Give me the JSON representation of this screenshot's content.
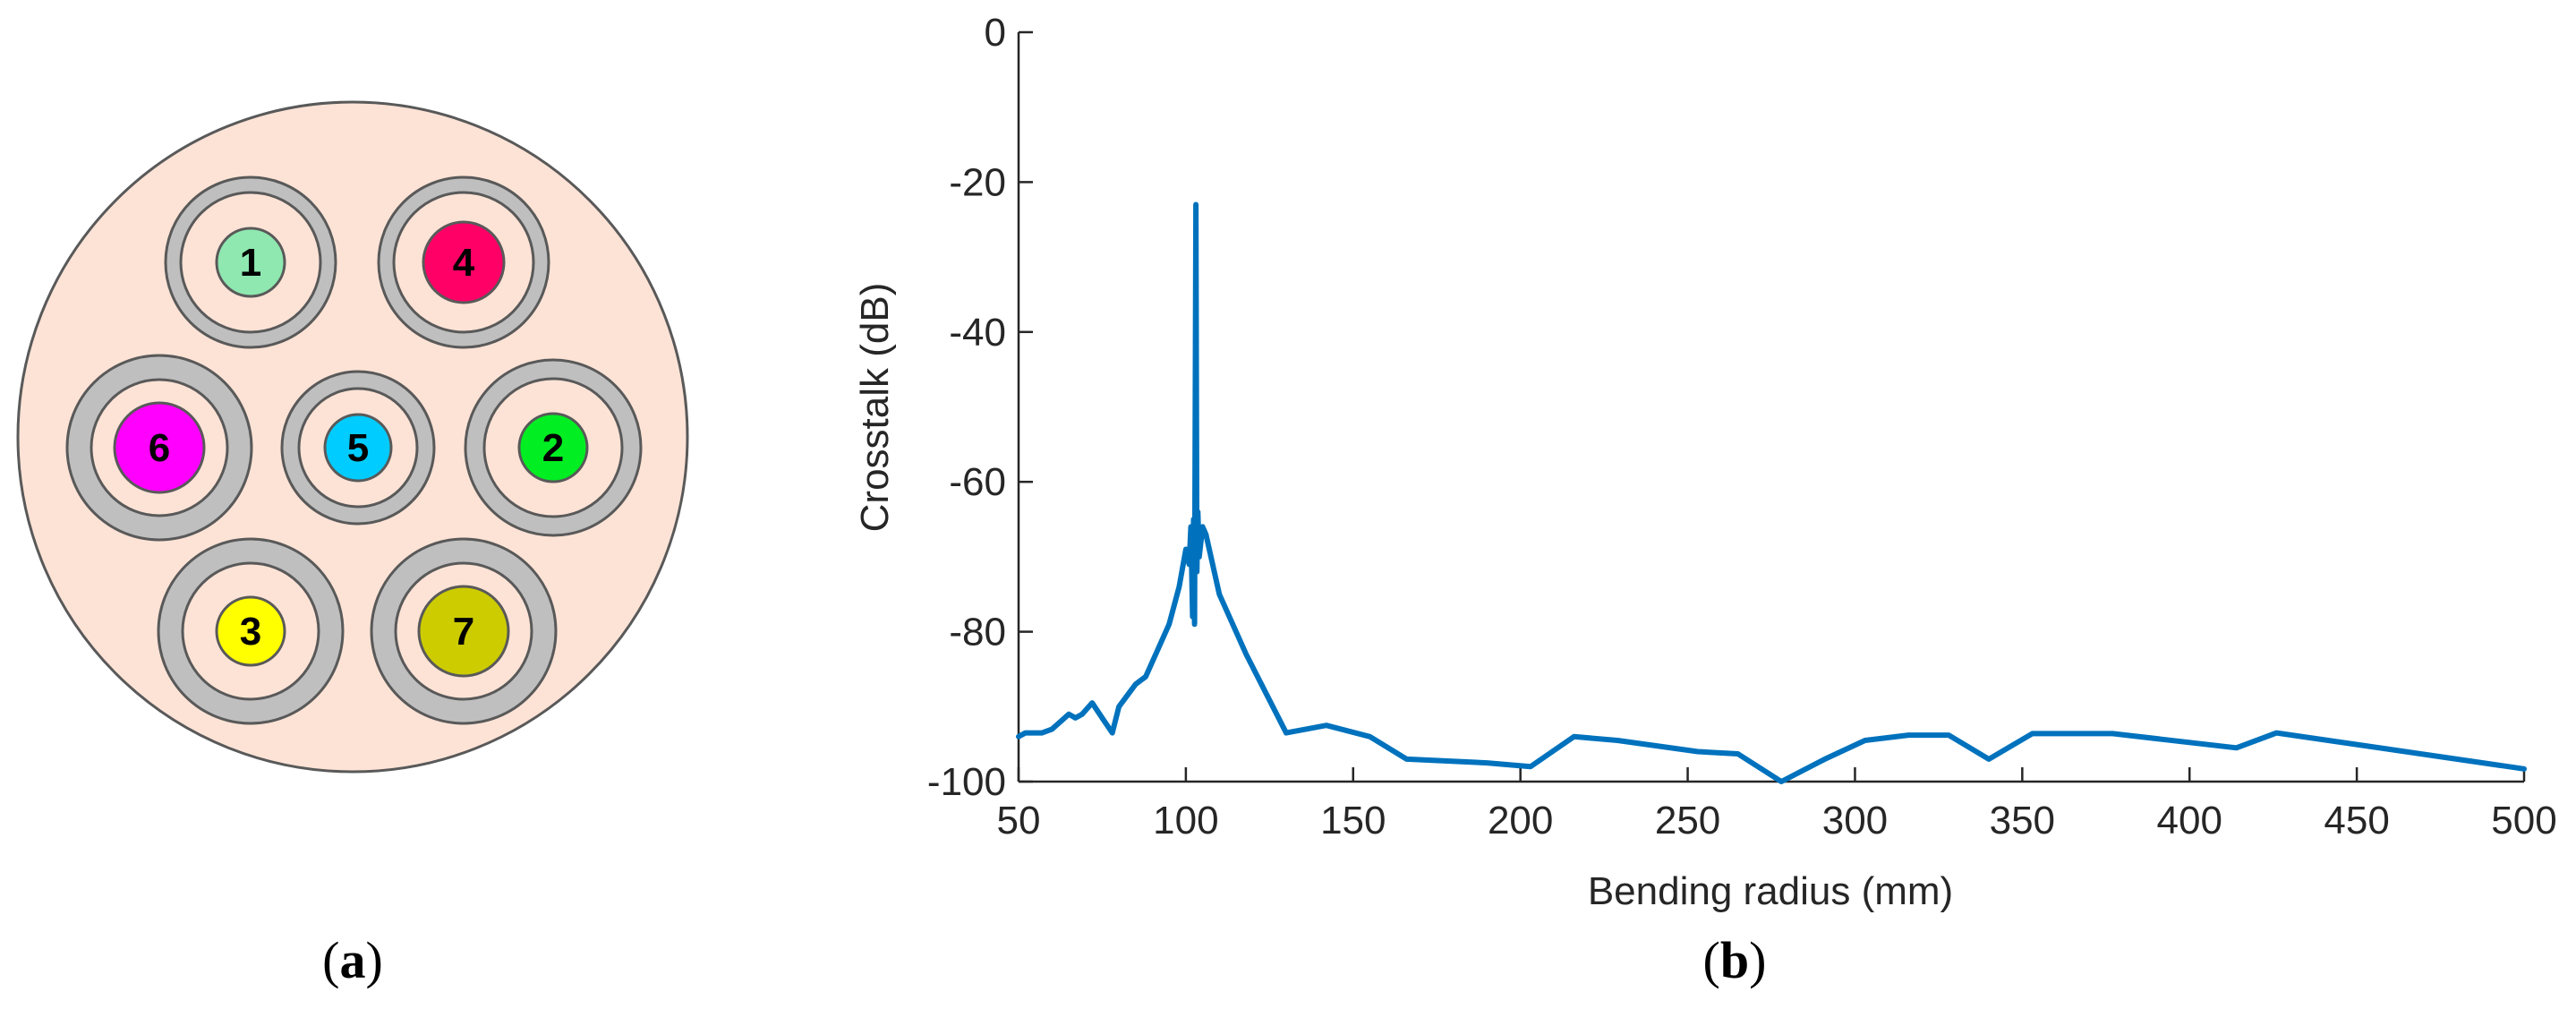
{
  "panel_a": {
    "caption": "(a)",
    "caption_letter": "a",
    "colors": {
      "cladding": "#fde3d6",
      "trench": "#bfbfbf",
      "outline": "#595959"
    },
    "cores": [
      {
        "label": "1",
        "color": "#8ee8b0"
      },
      {
        "label": "4",
        "color": "#ff0066"
      },
      {
        "label": "6",
        "color": "#ff00ff"
      },
      {
        "label": "5",
        "color": "#00ccff"
      },
      {
        "label": "2",
        "color": "#00ee22"
      },
      {
        "label": "3",
        "color": "#ffff00"
      },
      {
        "label": "7",
        "color": "#cccc00"
      }
    ]
  },
  "panel_b": {
    "caption": "(b)",
    "caption_letter": "b"
  },
  "chart_data": {
    "type": "line",
    "title": "",
    "xlabel": "Bending radius (mm)",
    "ylabel": "Crosstalk (dB)",
    "xlim": [
      50,
      500
    ],
    "ylim": [
      -100,
      0
    ],
    "xticks": [
      50,
      100,
      150,
      200,
      250,
      300,
      350,
      400,
      450,
      500
    ],
    "yticks": [
      0,
      -20,
      -40,
      -60,
      -80,
      -100
    ],
    "grid": false,
    "line_color": "#0072bd",
    "series": [
      {
        "name": "Crosstalk",
        "x": [
          50,
          52,
          57,
          60,
          65,
          67,
          69,
          72,
          75,
          78,
          80,
          85,
          88,
          92,
          95,
          98,
          100,
          101,
          101.5,
          102,
          102.3,
          102.6,
          103,
          103.3,
          103.6,
          104,
          105,
          106,
          110,
          118,
          130,
          142,
          155,
          166,
          190,
          203,
          216,
          229,
          253,
          265,
          278,
          291,
          303,
          316,
          328,
          340,
          353,
          377,
          414,
          426,
          500
        ],
        "values": [
          -94,
          -93.5,
          -93.5,
          -93,
          -91,
          -91.5,
          -91,
          -89.5,
          -91.5,
          -93.5,
          -90,
          -87,
          -86,
          -82,
          -79,
          -74,
          -69,
          -71,
          -66,
          -78,
          -65,
          -79,
          -23,
          -72,
          -64,
          -70,
          -66,
          -67,
          -75,
          -83,
          -93.5,
          -92.5,
          -94,
          -97,
          -97.5,
          -98,
          -94,
          -94.5,
          -96,
          -96.3,
          -100,
          -97,
          -94.5,
          -93.8,
          -93.8,
          -97,
          -93.6,
          -93.6,
          -95.5,
          -93.5,
          -98.3
        ]
      }
    ]
  }
}
